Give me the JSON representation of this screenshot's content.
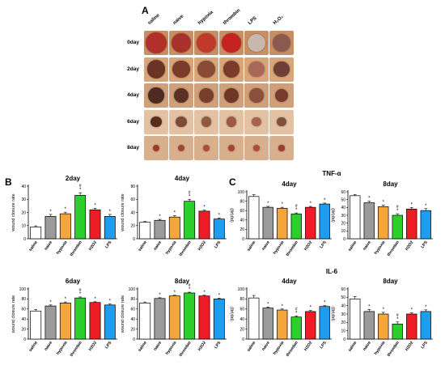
{
  "panelA": {
    "letter": "A",
    "columns": [
      "saline",
      "naive",
      "hypoxia",
      "thrombin",
      "LPS",
      "H₂O₂"
    ],
    "rows": [
      "0day",
      "2day",
      "4day",
      "6day",
      "8day"
    ],
    "skin_color": "#d9b79a"
  },
  "panelB": {
    "letter": "B"
  },
  "panelC": {
    "letter": "C",
    "tnf_title": "TNF-α",
    "il6_title": "IL-6"
  },
  "colors": {
    "saline": "#ffffff",
    "naive": "#9b9b9b",
    "hypoxia": "#f4a63a",
    "thrombin": "#2ccf2c",
    "H2O2": "#ee1c24",
    "LPS": "#1e9df0"
  },
  "chart_data": [
    {
      "id": "b2",
      "type": "bar",
      "title": "2day",
      "ylabel": "wound closure rate",
      "categories": [
        "saline",
        "naive",
        "hypoxia",
        "thrombin",
        "H2O2",
        "LPS"
      ],
      "values": [
        9,
        17,
        19,
        33,
        22,
        17
      ],
      "errors": [
        0.8,
        1.5,
        1.2,
        2,
        1.2,
        1.5
      ],
      "ylim": [
        0,
        40
      ],
      "yticks": [
        0,
        10,
        20,
        30,
        40
      ],
      "marks": [
        "",
        "*",
        "*",
        "*\n#",
        "*",
        "*"
      ]
    },
    {
      "id": "b4",
      "type": "bar",
      "title": "4day",
      "ylabel": "wound closure rate",
      "categories": [
        "saline",
        "naive",
        "hypoxia",
        "thrombin",
        "H2O2",
        "LPS"
      ],
      "values": [
        25,
        28,
        33,
        57,
        42,
        30
      ],
      "errors": [
        1.2,
        1.5,
        2,
        3,
        1.5,
        1.5
      ],
      "ylim": [
        0,
        80
      ],
      "yticks": [
        0,
        20,
        40,
        60,
        80
      ],
      "marks": [
        "",
        "*",
        "*",
        "*\n#",
        "*",
        "*"
      ]
    },
    {
      "id": "b6",
      "type": "bar",
      "title": "6day",
      "ylabel": "wound closure rate",
      "categories": [
        "saline",
        "naive",
        "hypoxia",
        "thrombin",
        "H2O2",
        "LPS"
      ],
      "values": [
        56,
        66,
        72,
        82,
        73,
        68
      ],
      "errors": [
        3,
        2,
        2,
        2,
        1.5,
        2
      ],
      "ylim": [
        0,
        100
      ],
      "yticks": [
        0,
        20,
        40,
        60,
        80,
        100
      ],
      "marks": [
        "",
        "*",
        "*",
        "*\n#",
        "*",
        "*"
      ]
    },
    {
      "id": "b8",
      "type": "bar",
      "title": "8day",
      "ylabel": "wound closure rate",
      "categories": [
        "saline",
        "naive",
        "hypoxia",
        "thrombin",
        "H2O2",
        "LPS"
      ],
      "values": [
        72,
        81,
        86,
        92,
        86,
        80
      ],
      "errors": [
        2,
        1.5,
        1.5,
        1.5,
        1.5,
        1.5
      ],
      "ylim": [
        0,
        100
      ],
      "yticks": [
        0,
        20,
        40,
        60,
        80,
        100
      ],
      "marks": [
        "",
        "*",
        "*",
        "*\n#",
        "*",
        "*"
      ]
    },
    {
      "id": "t4",
      "type": "bar",
      "title": "4day",
      "ylabel": "(pg/μg)",
      "categories": [
        "saline",
        "naive",
        "hypoxia",
        "thrombin",
        "H2O2",
        "LPS"
      ],
      "values": [
        90,
        67,
        65,
        53,
        67,
        74
      ],
      "errors": [
        4,
        2,
        2,
        2,
        2,
        2
      ],
      "ylim": [
        0,
        100
      ],
      "yticks": [
        0,
        20,
        40,
        60,
        80,
        100
      ],
      "marks": [
        "",
        "*",
        "*",
        "*\n#",
        "*",
        "*"
      ]
    },
    {
      "id": "t8",
      "type": "bar",
      "title": "8day",
      "ylabel": "(pg/μg)",
      "categories": [
        "saline",
        "naive",
        "hypoxia",
        "thrombin",
        "H2O2",
        "LPS"
      ],
      "values": [
        55,
        46,
        41,
        30,
        38,
        36
      ],
      "errors": [
        1.5,
        2,
        2,
        2,
        2,
        2.5
      ],
      "ylim": [
        0,
        60
      ],
      "yticks": [
        0,
        10,
        20,
        30,
        40,
        50,
        60
      ],
      "marks": [
        "",
        "*",
        "*",
        "*\n#",
        "*",
        "*"
      ]
    },
    {
      "id": "i4",
      "type": "bar",
      "title": "4day",
      "ylabel": "(pg/μg)",
      "categories": [
        "saline",
        "naive",
        "hypoxia",
        "thrombin",
        "H2O2",
        "LPS"
      ],
      "values": [
        82,
        62,
        58,
        44,
        55,
        65
      ],
      "errors": [
        5,
        2,
        2,
        2,
        2,
        2
      ],
      "ylim": [
        0,
        100
      ],
      "yticks": [
        0,
        20,
        40,
        60,
        80,
        100
      ],
      "marks": [
        "",
        "*",
        "*",
        "*\n#",
        "*",
        "*"
      ]
    },
    {
      "id": "i8",
      "type": "bar",
      "title": "8day",
      "ylabel": "(pg/μg)",
      "categories": [
        "saline",
        "naive",
        "hypoxia",
        "thrombin",
        "H2O2",
        "LPS"
      ],
      "values": [
        48,
        33,
        30,
        18,
        30,
        33
      ],
      "errors": [
        3,
        2.5,
        2,
        2.5,
        1.5,
        2
      ],
      "ylim": [
        0,
        60
      ],
      "yticks": [
        0,
        10,
        20,
        30,
        40,
        50,
        60
      ],
      "marks": [
        "",
        "*",
        "*",
        "*\n#",
        "*",
        "*"
      ]
    }
  ]
}
